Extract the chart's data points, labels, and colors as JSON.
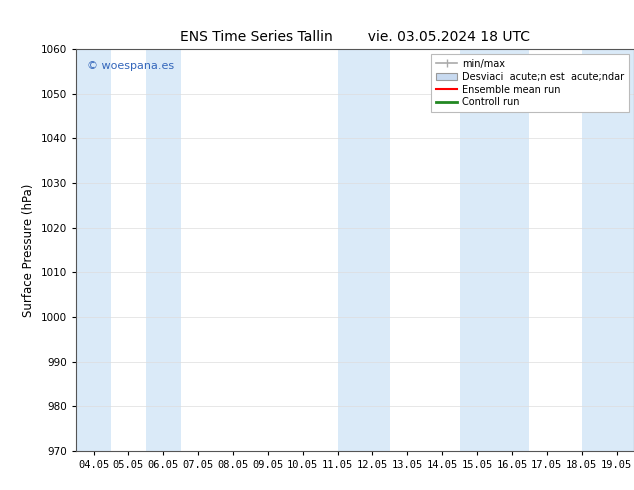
{
  "title": "ENS Time Series Tallin        vie. 03.05.2024 18 UTC",
  "ylabel": "Surface Pressure (hPa)",
  "xlabel": "",
  "ylim": [
    970,
    1060
  ],
  "yticks": [
    970,
    980,
    990,
    1000,
    1010,
    1020,
    1030,
    1040,
    1050,
    1060
  ],
  "xtick_labels": [
    "04.05",
    "05.05",
    "06.05",
    "07.05",
    "08.05",
    "09.05",
    "10.05",
    "11.05",
    "12.05",
    "13.05",
    "14.05",
    "15.05",
    "16.05",
    "17.05",
    "18.05",
    "19.05"
  ],
  "xtick_positions": [
    0,
    1,
    2,
    3,
    4,
    5,
    6,
    7,
    8,
    9,
    10,
    11,
    12,
    13,
    14,
    15
  ],
  "xlim": [
    -0.5,
    15.5
  ],
  "background_color": "#ffffff",
  "plot_bg_color": "#ffffff",
  "shaded_bands": [
    {
      "x_start": -0.5,
      "x_end": 0.5,
      "color": "#daeaf8"
    },
    {
      "x_start": 1.5,
      "x_end": 2.5,
      "color": "#daeaf8"
    },
    {
      "x_start": 7.0,
      "x_end": 8.5,
      "color": "#daeaf8"
    },
    {
      "x_start": 10.5,
      "x_end": 12.5,
      "color": "#daeaf8"
    },
    {
      "x_start": 14.0,
      "x_end": 15.5,
      "color": "#daeaf8"
    }
  ],
  "legend_labels": [
    "min/max",
    "Desviaci  acute;n est  acute;ndar",
    "Ensemble mean run",
    "Controll run"
  ],
  "legend_colors": [
    "#aaaaaa",
    "#c8daf0",
    "#ff0000",
    "#008000"
  ],
  "watermark": "© woespana.es",
  "watermark_color": "#3366bb",
  "title_fontsize": 10,
  "tick_fontsize": 7.5,
  "ylabel_fontsize": 8.5,
  "legend_fontsize": 7
}
